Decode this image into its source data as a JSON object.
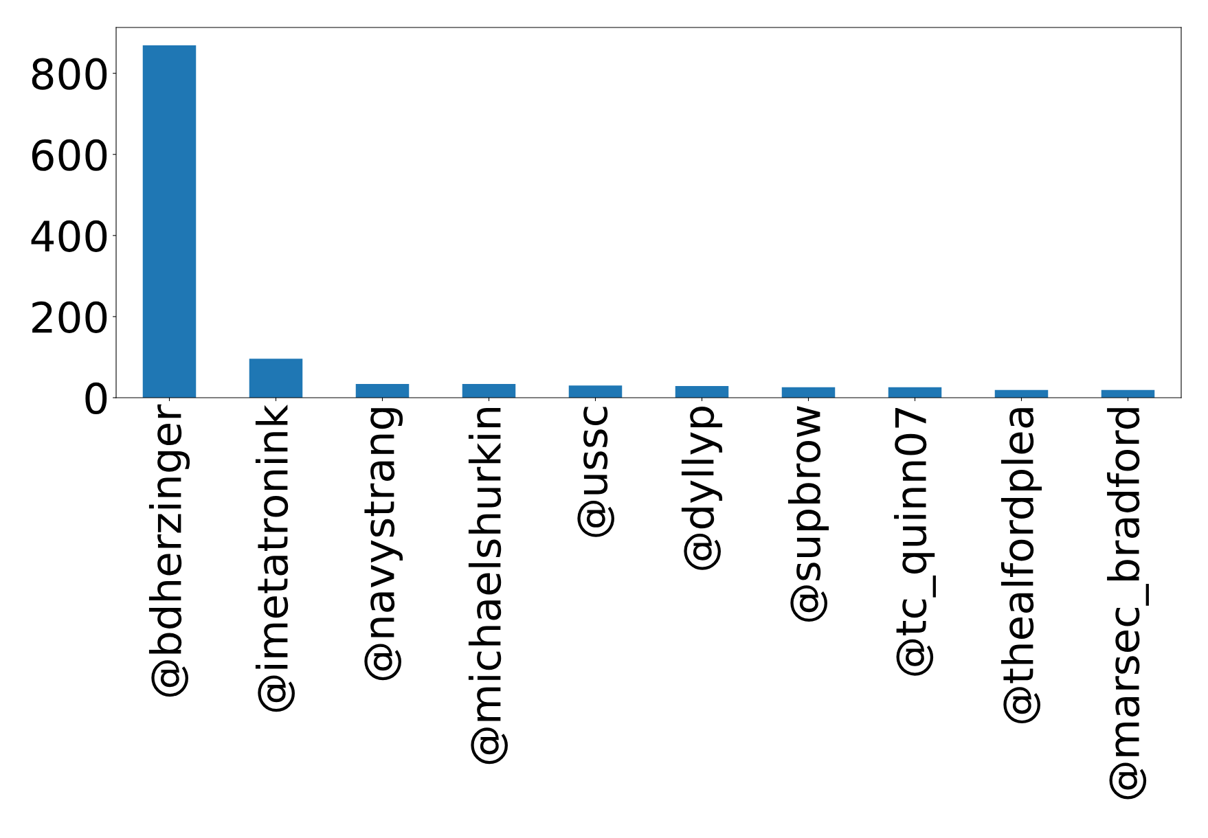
{
  "chart_data": {
    "type": "bar",
    "categories": [
      "@bdherzinger",
      "@imetatronink",
      "@navystrang",
      "@michaelshurkin",
      "@ussc",
      "@dyllyp",
      "@supbrow",
      "@tc_quinn07",
      "@thealfordplea",
      "@marsec_bradford"
    ],
    "values": [
      869,
      96,
      34,
      34,
      30,
      29,
      26,
      26,
      19,
      19
    ],
    "color": "#1f77b4",
    "ylim": [
      0,
      913
    ],
    "yticks": [
      0,
      200,
      400,
      600,
      800
    ],
    "grid": false,
    "legend": false
  }
}
